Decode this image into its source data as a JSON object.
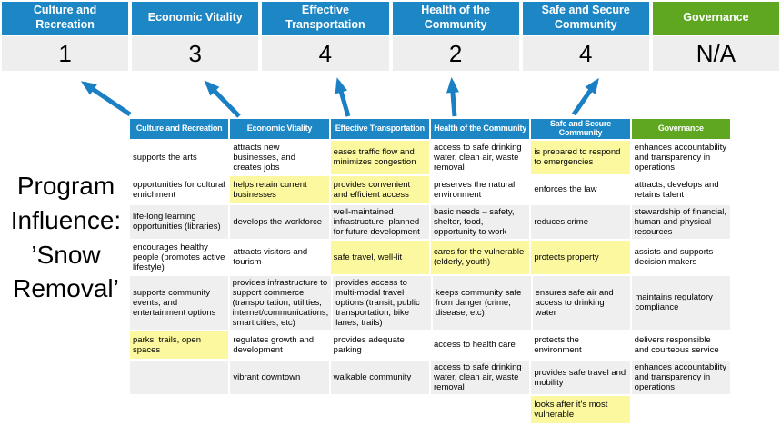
{
  "program_label": {
    "lines": [
      "Program",
      "Influence:",
      "’Snow",
      "Removal’"
    ]
  },
  "colors": {
    "blue": "#1d87c6",
    "green": "#5fa621",
    "highlight": "#fbf8a0",
    "band_gray": "#efefef",
    "score_bg": "#eeeeee",
    "arrow": "#1b7fc4"
  },
  "scoreboard": {
    "columns": [
      {
        "label": "Culture and Recreation",
        "score": "1",
        "theme": "blue"
      },
      {
        "label": "Economic Vitality",
        "score": "3",
        "theme": "blue"
      },
      {
        "label": "Effective Transportation",
        "score": "4",
        "theme": "blue"
      },
      {
        "label": "Health of the Community",
        "score": "2",
        "theme": "blue"
      },
      {
        "label": "Safe and Secure Community",
        "score": "4",
        "theme": "blue"
      },
      {
        "label": "Governance",
        "score": "N/A",
        "theme": "green"
      }
    ]
  },
  "matrix": {
    "headers": [
      {
        "label": "Culture and Recreation",
        "theme": "blue"
      },
      {
        "label": "Economic Vitality",
        "theme": "blue"
      },
      {
        "label": "Effective Transportation",
        "theme": "blue"
      },
      {
        "label": "Health of the Community",
        "theme": "blue"
      },
      {
        "label": "Safe and Secure Community",
        "theme": "blue"
      },
      {
        "label": "Governance",
        "theme": "green"
      }
    ],
    "rows": [
      {
        "shaded": false,
        "cells": [
          {
            "text": "supports the arts",
            "highlighted": false
          },
          {
            "text": "attracts new businesses, and creates jobs",
            "highlighted": false
          },
          {
            "text": "eases traffic flow and minimizes congestion",
            "highlighted": true
          },
          {
            "text": "access to safe drinking water, clean air, waste removal",
            "highlighted": false
          },
          {
            "text": "is prepared to respond to emergencies",
            "highlighted": true
          },
          {
            "text": "enhances accountability and transparency in operations",
            "highlighted": false
          }
        ]
      },
      {
        "shaded": false,
        "cells": [
          {
            "text": "opportunities for cultural enrichment",
            "highlighted": false
          },
          {
            "text": "helps retain current businesses",
            "highlighted": true
          },
          {
            "text": "provides convenient and efficient access",
            "highlighted": true
          },
          {
            "text": "preserves the natural environment",
            "highlighted": false
          },
          {
            "text": "enforces the law",
            "highlighted": false
          },
          {
            "text": "attracts, develops and retains talent",
            "highlighted": false
          }
        ]
      },
      {
        "shaded": true,
        "cells": [
          {
            "text": "life-long learning opportunities (libraries)",
            "highlighted": false
          },
          {
            "text": "develops the workforce",
            "highlighted": false
          },
          {
            "text": "well-maintained infrastructure, planned for future development",
            "highlighted": false
          },
          {
            "text": "basic needs – safety, shelter, food, opportunity to work",
            "highlighted": true
          },
          {
            "text": "reduces crime",
            "highlighted": false
          },
          {
            "text": "stewardship of financial, human and physical resources",
            "highlighted": false
          }
        ]
      },
      {
        "shaded": false,
        "cells": [
          {
            "text": "encourages healthy people (promotes active lifestyle)",
            "highlighted": false
          },
          {
            "text": "attracts visitors and tourism",
            "highlighted": false
          },
          {
            "text": "safe travel, well-lit",
            "highlighted": true
          },
          {
            "text": "cares for the vulnerable (elderly, youth)",
            "highlighted": true
          },
          {
            "text": "protects property",
            "highlighted": true
          },
          {
            "text": "assists and supports decision makers",
            "highlighted": false
          }
        ]
      },
      {
        "shaded": true,
        "cells": [
          {
            "text": "supports community events, and entertainment options",
            "highlighted": false
          },
          {
            "text": "provides infrastructure to support commerce (transportation, utilities, internet/communications, smart cities, etc)",
            "highlighted": true
          },
          {
            "text": "provides access to multi-modal travel options (transit, public transportation, bike lanes, trails)",
            "highlighted": true
          },
          {
            "text": "keeps community safe from danger (crime, disease, etc)",
            "highlighted": true
          },
          {
            "text": "ensures safe air and access to drinking water",
            "highlighted": false
          },
          {
            "text": "maintains regulatory compliance",
            "highlighted": false
          }
        ]
      },
      {
        "shaded": false,
        "cells": [
          {
            "text": "parks, trails, open spaces",
            "highlighted": true
          },
          {
            "text": "regulates growth and development",
            "highlighted": false
          },
          {
            "text": "provides adequate parking",
            "highlighted": false
          },
          {
            "text": "access to health care",
            "highlighted": false
          },
          {
            "text": "protects the environment",
            "highlighted": false
          },
          {
            "text": "delivers responsible and courteous service",
            "highlighted": false
          }
        ]
      },
      {
        "shaded": true,
        "cells": [
          {
            "text": "",
            "highlighted": false
          },
          {
            "text": "vibrant downtown",
            "highlighted": false
          },
          {
            "text": "walkable community",
            "highlighted": false
          },
          {
            "text": "access to safe drinking water, clean air, waste removal",
            "highlighted": false
          },
          {
            "text": "provides safe travel and mobility",
            "highlighted": true
          },
          {
            "text": "enhances accountability and transparency in operations",
            "highlighted": false
          }
        ]
      },
      {
        "shaded": false,
        "cells": [
          {
            "text": "",
            "highlighted": false
          },
          {
            "text": "",
            "highlighted": false
          },
          {
            "text": "",
            "highlighted": false
          },
          {
            "text": "",
            "highlighted": false
          },
          {
            "text": "looks after it's most vulnerable",
            "highlighted": true
          },
          {
            "text": "",
            "highlighted": false
          }
        ]
      }
    ]
  }
}
